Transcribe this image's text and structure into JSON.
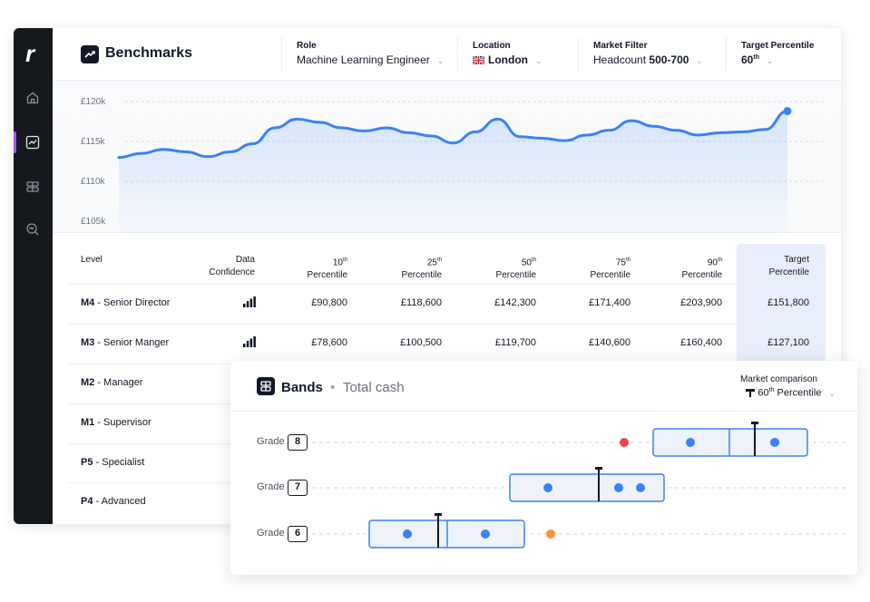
{
  "app": {
    "logo": "r",
    "title": "Benchmarks",
    "filters": {
      "role": {
        "label": "Role",
        "value": "Machine Learning Engineer"
      },
      "location": {
        "label": "Location",
        "value": "London",
        "flag_icon": "uk-flag-icon"
      },
      "market": {
        "label": "Market Filter",
        "value_prefix": "Headcount ",
        "value_bold": "500-700"
      },
      "target": {
        "label": "Target Percentile",
        "value": "60",
        "suffix": "th"
      }
    },
    "nav": [
      "home-icon",
      "trend-chart-icon",
      "bands-icon",
      "search-zoom-icon"
    ]
  },
  "chart_data": {
    "type": "area",
    "y_ticks": [
      "£120k",
      "£115k",
      "£110k",
      "£105k"
    ],
    "ylim": [
      105000,
      120000
    ],
    "x": [
      0,
      1,
      2,
      3,
      4,
      5,
      6,
      7,
      8,
      9,
      10,
      11,
      12,
      13,
      14,
      15,
      16,
      17,
      18,
      19,
      20,
      21,
      22,
      23,
      24,
      25,
      26,
      27,
      28,
      29,
      30
    ],
    "values": [
      113000,
      113500,
      114000,
      113700,
      113100,
      113700,
      114700,
      116700,
      117800,
      117400,
      116700,
      116300,
      116700,
      116100,
      115700,
      114800,
      116200,
      117800,
      115600,
      115400,
      115100,
      115800,
      116400,
      117600,
      116900,
      116400,
      115800,
      116100,
      116200,
      116500,
      118800
    ],
    "grid": true,
    "highlight_last": true,
    "color": "#3b82f6"
  },
  "table": {
    "headers": {
      "level": "Level",
      "confidence": [
        "Data",
        "Confidence"
      ],
      "p10": [
        "10",
        "th",
        "Percentile"
      ],
      "p25": [
        "25",
        "th",
        "Percentile"
      ],
      "p50": [
        "50",
        "th",
        "Percentile"
      ],
      "p75": [
        "75",
        "th",
        "Percentile"
      ],
      "p90": [
        "90",
        "th",
        "Percentile"
      ],
      "target": [
        "Target",
        "Percentile"
      ]
    },
    "rows": [
      {
        "code": "M4",
        "name": " - Senior Director",
        "values": [
          "£90,800",
          "£118,600",
          "£142,300",
          "£171,400",
          "£203,900",
          "£151,800"
        ]
      },
      {
        "code": "M3",
        "name": " - Senior Manger",
        "values": [
          "£78,600",
          "£100,500",
          "£119,700",
          "£140,600",
          "£160,400",
          "£127,100"
        ]
      },
      {
        "code": "M2",
        "name": " - Manager"
      },
      {
        "code": "M1",
        "name": " - Supervisor"
      },
      {
        "code": "P5",
        "name": " - Specialist"
      },
      {
        "code": "P4",
        "name": " - Advanced"
      }
    ]
  },
  "bands": {
    "title": "Bands",
    "separator": "•",
    "subtitle": "Total cash",
    "market_label": "Market comparison",
    "market_value": "60",
    "market_suffix": "th",
    "market_value_rest": " Percentile",
    "grade_label": "Grade",
    "grades": [
      {
        "grade": "8",
        "outlier_color": "#ef4444"
      },
      {
        "grade": "7"
      },
      {
        "grade": "6",
        "outlier_color": "#fb923c"
      }
    ],
    "colors": {
      "band_border": "#3b82f6",
      "band_fill": "#eef2fb",
      "dot": "#3b82f6"
    }
  }
}
